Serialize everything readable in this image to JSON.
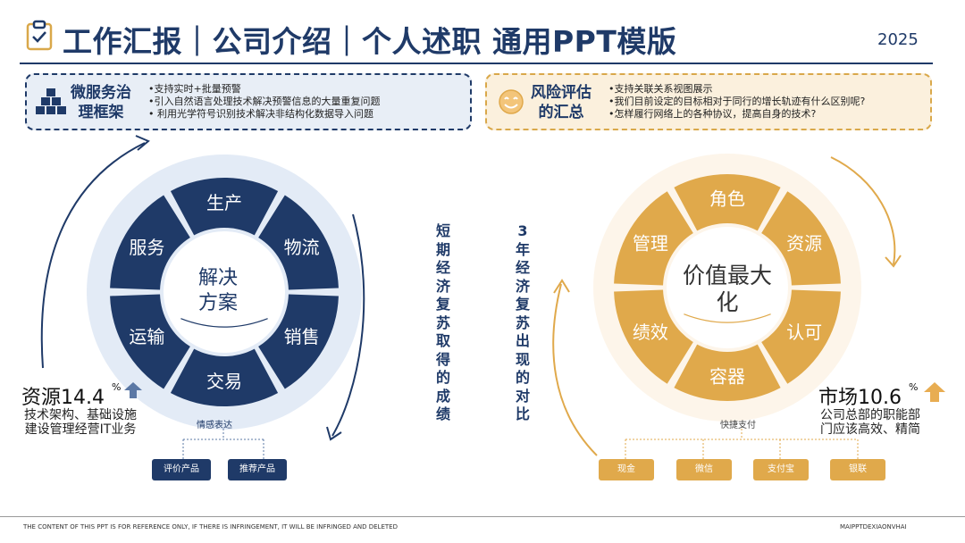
{
  "header": {
    "title": "工作汇报｜公司介绍｜个人述职 通用PPT模版",
    "year": "2025"
  },
  "left_box": {
    "title": "微服务治理框架",
    "lines": [
      "•支持实时+批量预警",
      "•引入自然语言处理技术解决预警信息的大量重复问题",
      "• 利用光学符号识别技术解决非结构化数据导入问题"
    ]
  },
  "right_box": {
    "title": "风险评估的汇总",
    "lines": [
      "•支持关联关系视图展示",
      "•我们目前设定的目标相对于同行的增长轨迹有什么区别呢?",
      "•怎样履行网络上的各种协议，提高自身的技术?"
    ]
  },
  "left_wheel": {
    "center_text": "解决方案",
    "segments": [
      "生产",
      "物流",
      "销售",
      "交易",
      "运输",
      "服务"
    ],
    "caption": "情感表达",
    "buttons": [
      "评价产品",
      "推荐产品"
    ],
    "colors": {
      "segment": "#1f3a68",
      "halo": "#e3ebf6"
    }
  },
  "right_wheel": {
    "center_text": "价值最大化",
    "segments": [
      "角色",
      "资源",
      "认可",
      "容器",
      "绩效",
      "管理"
    ],
    "caption": "快捷支付",
    "buttons": [
      "现金",
      "微信",
      "支付宝",
      "银联"
    ],
    "colors": {
      "segment": "#e0a94b",
      "halo": "#fdf5ea"
    }
  },
  "vertical_text_left": "短期经济复苏取得的成绩",
  "vertical_text_right": "3年经济复苏出现的对比",
  "left_stat": {
    "label": "资源14.4",
    "unit": "%",
    "desc": "技术架构、基础设施建设管理经营IT业务",
    "direction": "up"
  },
  "right_stat": {
    "label": "市场10.6",
    "unit": "%",
    "desc": "公司总部的职能部门应该高效、精简",
    "direction": "up"
  },
  "footer": {
    "left": "THE CONTENT OF THIS PPT IS FOR REFERENCE ONLY, IF THERE IS INFRINGEMENT, IT WILL BE INFRINGED AND DELETED",
    "right": "MAIPPTDEXIAONVHAI"
  }
}
